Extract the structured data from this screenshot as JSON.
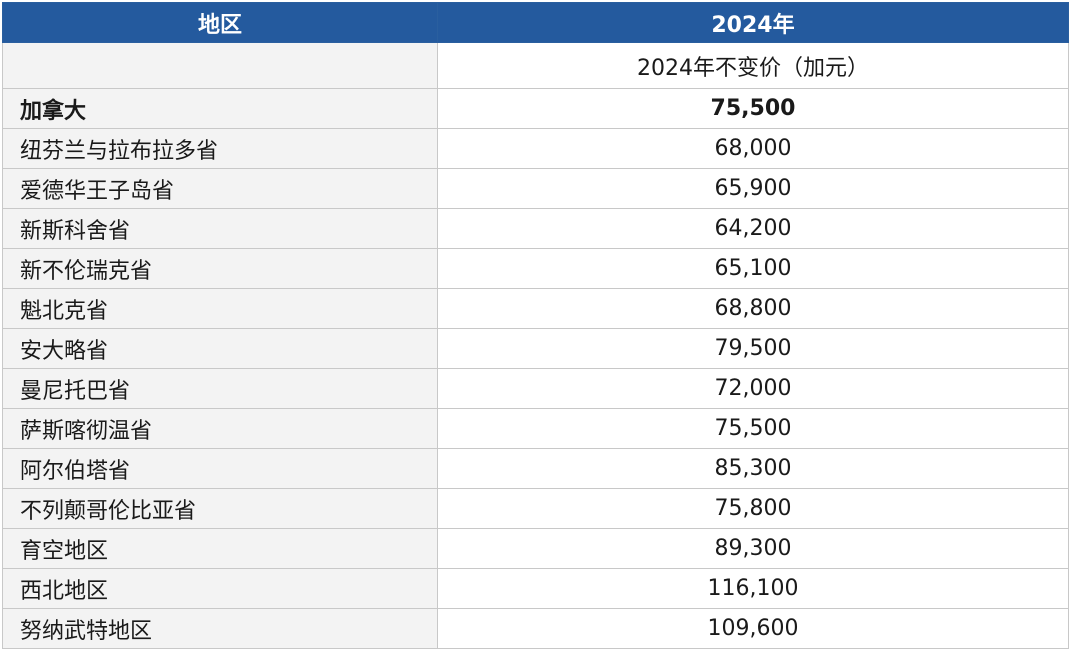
{
  "header": {
    "region_label": "地区",
    "year_label": "2024年"
  },
  "subheader": {
    "unit_label": "2024年不变价（加元）"
  },
  "rows": [
    {
      "region": "加拿大",
      "value": "75,500"
    },
    {
      "region": "纽芬兰与拉布拉多省",
      "value": "68,000"
    },
    {
      "region": "爱德华王子岛省",
      "value": "65,900"
    },
    {
      "region": "新斯科舍省",
      "value": "64,200"
    },
    {
      "region": "新不伦瑞克省",
      "value": "65,100"
    },
    {
      "region": "魁北克省",
      "value": "68,800"
    },
    {
      "region": "安大略省",
      "value": "79,500"
    },
    {
      "region": "曼尼托巴省",
      "value": "72,000"
    },
    {
      "region": "萨斯喀彻温省",
      "value": "75,500"
    },
    {
      "region": "阿尔伯塔省",
      "value": "85,300"
    },
    {
      "region": "不列颠哥伦比亚省",
      "value": "75,800"
    },
    {
      "region": "育空地区",
      "value": "89,300"
    },
    {
      "region": "西北地区",
      "value": "116,100"
    },
    {
      "region": "努纳武特地区",
      "value": "109,600"
    }
  ],
  "colors": {
    "header_bg": "#245a9e",
    "region_cell_bg": "#f3f3f3",
    "border": "#c8c8c8"
  }
}
